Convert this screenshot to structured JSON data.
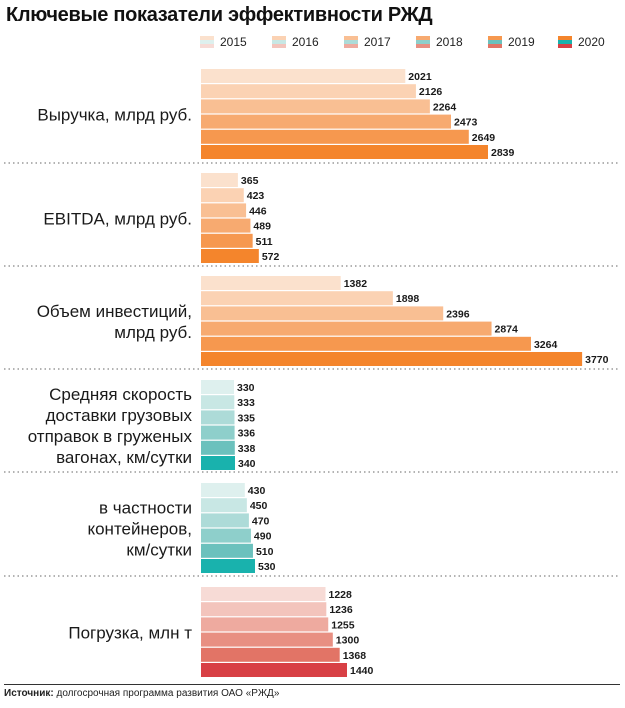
{
  "title": "Ключевые показатели эффективности РЖД",
  "source_label": "Источник:",
  "source_text": "долгосрочная программа развития ОАО «РЖД»",
  "chart_data": {
    "type": "bar",
    "orientation": "horizontal",
    "title": "Ключевые показатели эффективности РЖД",
    "years": [
      "2015",
      "2016",
      "2017",
      "2018",
      "2019",
      "2020"
    ],
    "groups": [
      {
        "label_lines": [
          "Выручка, млрд руб."
        ],
        "values": [
          2021,
          2126,
          2264,
          2473,
          2649,
          2839
        ],
        "colors": [
          "#fbe1cd",
          "#fbd2b3",
          "#f9bf93",
          "#f7aa70",
          "#f6984f",
          "#f4852c"
        ]
      },
      {
        "label_lines": [
          "EBITDA, млрд руб."
        ],
        "values": [
          365,
          423,
          446,
          489,
          511,
          572
        ],
        "colors": [
          "#fbe1cd",
          "#fbd2b3",
          "#f9bf93",
          "#f7aa70",
          "#f6984f",
          "#f4852c"
        ]
      },
      {
        "label_lines": [
          "Объем инвестиций,",
          "млрд руб."
        ],
        "values": [
          1382,
          1898,
          2396,
          2874,
          3264,
          3770
        ],
        "colors": [
          "#fbe1cd",
          "#fbd2b3",
          "#f9bf93",
          "#f7aa70",
          "#f6984f",
          "#f4852c"
        ]
      },
      {
        "label_lines": [
          "Средняя скорость",
          "доставки грузовых",
          "отправок в груженых",
          "вагонах, км/сутки"
        ],
        "values": [
          330,
          333,
          335,
          336,
          338,
          340
        ],
        "colors": [
          "#def0ee",
          "#c8e7e4",
          "#addbd8",
          "#8ecfcb",
          "#6bc1bd",
          "#19b2ad"
        ]
      },
      {
        "label_lines": [
          "в частности",
          "контейнеров,",
          "км/сутки"
        ],
        "values": [
          430,
          450,
          470,
          490,
          510,
          530
        ],
        "colors": [
          "#def0ee",
          "#c8e7e4",
          "#addbd8",
          "#8ecfcb",
          "#6bc1bd",
          "#19b2ad"
        ]
      },
      {
        "label_lines": [
          "Погрузка, млн т"
        ],
        "values": [
          1228,
          1236,
          1255,
          1300,
          1368,
          1440
        ],
        "colors": [
          "#f7dbd6",
          "#f3c4bc",
          "#eeaa9f",
          "#e88f82",
          "#e27466",
          "#d84045"
        ]
      }
    ],
    "legend": {
      "placement": "top",
      "swatch_colors": [
        [
          "#fbe1cd",
          "#def0ee",
          "#f7dbd6"
        ],
        [
          "#fbd2b3",
          "#c8e7e4",
          "#f3c4bc"
        ],
        [
          "#f9bf93",
          "#addbd8",
          "#eeaa9f"
        ],
        [
          "#f7aa70",
          "#8ecfcb",
          "#e88f82"
        ],
        [
          "#f6984f",
          "#6bc1bd",
          "#e27466"
        ],
        [
          "#f4852c",
          "#19b2ad",
          "#d84045"
        ]
      ]
    },
    "data_labels": true,
    "grid": false
  }
}
